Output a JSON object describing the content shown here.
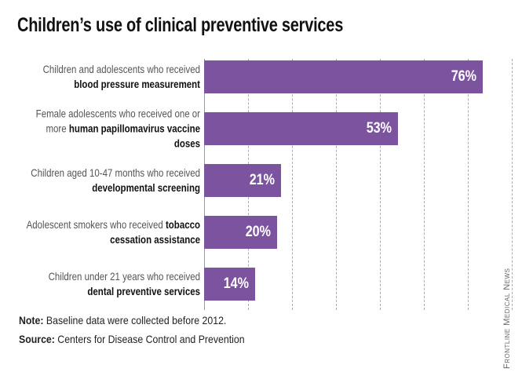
{
  "chart_data": {
    "type": "bar",
    "orientation": "horizontal",
    "title": "Children’s use of clinical preventive services",
    "categories": [
      "Children and adolescents who received blood pressure measurement",
      "Female adolescents who received one or more human papillomavirus vaccine doses",
      "Children aged 10-47 months who received developmental screening",
      "Adolescent smokers who received tobacco cessation assistance",
      "Children under 21 years who received dental preventive services"
    ],
    "category_highlights": [
      "blood pressure measurement",
      "human papillomavirus vaccine doses",
      "developmental screening",
      "tobacco cessation assistance",
      "dental preventive services"
    ],
    "values": [
      76,
      53,
      21,
      20,
      14
    ],
    "value_labels": [
      "76%",
      "53%",
      "21%",
      "20%",
      "14%"
    ],
    "color": "#7b539f",
    "xlim": [
      0,
      84
    ],
    "xticks": [
      0,
      12,
      24,
      36,
      48,
      60,
      72,
      84
    ],
    "grid": true,
    "note_label": "Note:",
    "note": "Baseline data were collected before 2012.",
    "source_label": "Source:",
    "source": "Centers for Disease Control and Prevention",
    "credit": "Frontline Medical News"
  }
}
